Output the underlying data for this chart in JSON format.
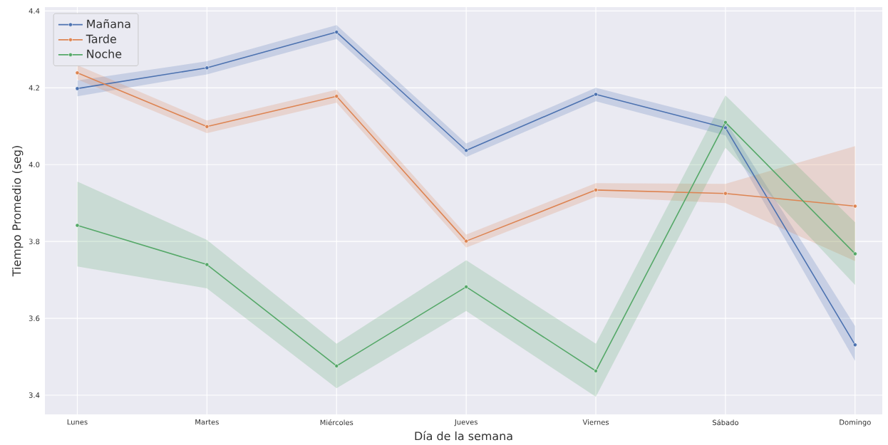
{
  "chart_data": {
    "type": "line",
    "xlabel": "Día de la semana",
    "ylabel": "Tiempo Promedio (seg)",
    "categories": [
      "Lunes",
      "Martes",
      "Miércoles",
      "Jueves",
      "Viernes",
      "Sábado",
      "Domingo"
    ],
    "series": [
      {
        "name": "Mañana",
        "color": "#4c72b0",
        "values": [
          4.198,
          4.252,
          4.345,
          4.037,
          4.183,
          4.096,
          3.531
        ],
        "lower": [
          4.178,
          4.235,
          4.327,
          4.02,
          4.165,
          4.076,
          3.489
        ],
        "upper": [
          4.219,
          4.269,
          4.363,
          4.055,
          4.2,
          4.114,
          3.58
        ]
      },
      {
        "name": "Tarde",
        "color": "#dd8452",
        "values": [
          4.239,
          4.099,
          4.178,
          3.801,
          3.934,
          3.925,
          3.892
        ],
        "lower": [
          4.222,
          4.082,
          4.161,
          3.784,
          3.916,
          3.9,
          3.749
        ],
        "upper": [
          4.259,
          4.115,
          4.195,
          3.818,
          3.952,
          3.95,
          4.048
        ]
      },
      {
        "name": "Noche",
        "color": "#55a868",
        "values": [
          3.842,
          3.74,
          3.476,
          3.682,
          3.463,
          4.11,
          3.768
        ],
        "lower": [
          3.735,
          3.678,
          3.418,
          3.619,
          3.396,
          4.044,
          3.687
        ],
        "upper": [
          3.956,
          3.804,
          3.534,
          3.751,
          3.534,
          4.18,
          3.85
        ]
      }
    ],
    "ylim": [
      3.35,
      4.41
    ],
    "yticks": [
      3.4,
      3.6,
      3.8,
      {
        "value": 4.0,
        "label": "4.0"
      },
      4.2,
      4.4
    ],
    "grid": true,
    "legend": "top left",
    "marker": "circle"
  }
}
